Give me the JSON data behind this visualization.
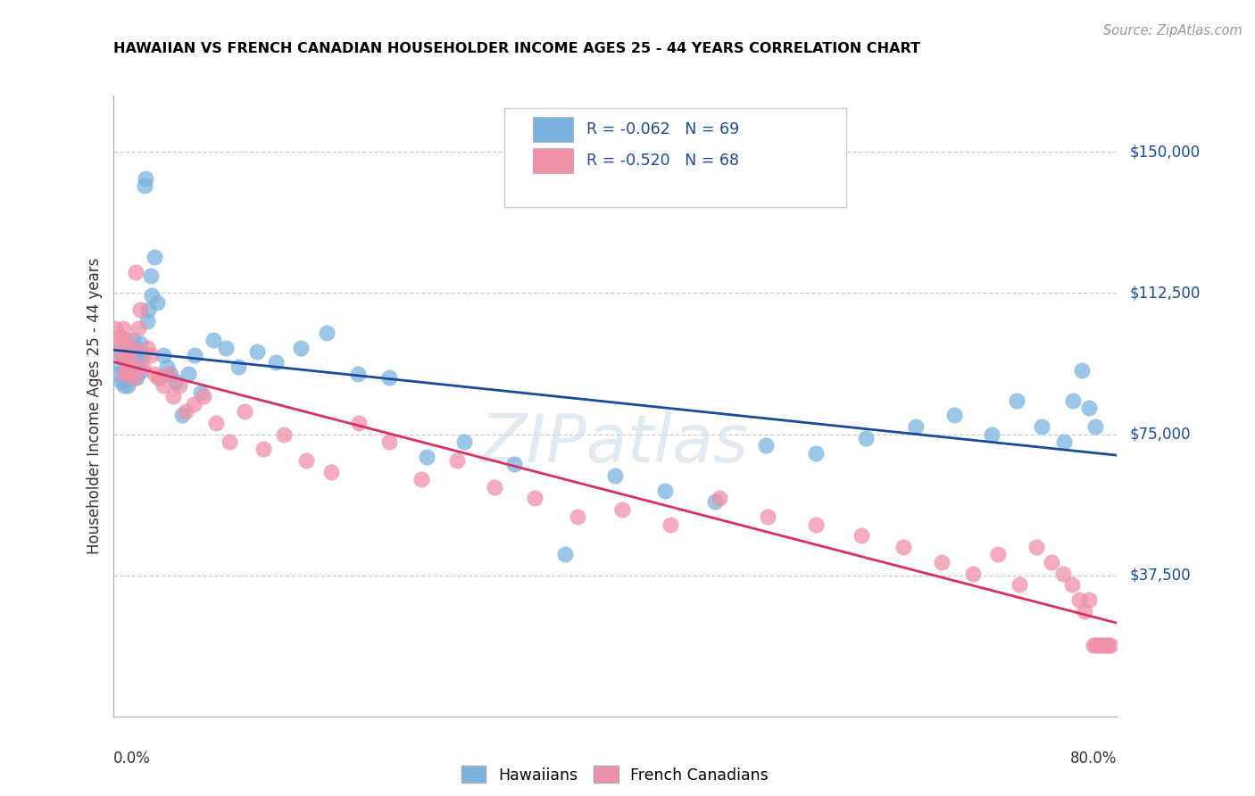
{
  "title": "HAWAIIAN VS FRENCH CANADIAN HOUSEHOLDER INCOME AGES 25 - 44 YEARS CORRELATION CHART",
  "source": "Source: ZipAtlas.com",
  "ylabel": "Householder Income Ages 25 - 44 years",
  "ytick_vals": [
    0,
    37500,
    75000,
    112500,
    150000
  ],
  "ytick_labels": [
    "",
    "$37,500",
    "$75,000",
    "$112,500",
    "$150,000"
  ],
  "xmin": 0.0,
  "xmax": 0.8,
  "ymin": 0,
  "ymax": 165000,
  "hawaiian_R": -0.062,
  "hawaiian_N": 69,
  "french_R": -0.52,
  "french_N": 68,
  "blue_scatter": "#7ab3e0",
  "pink_scatter": "#f090a8",
  "blue_line": "#1a4a9c",
  "pink_line": "#d83060",
  "legend_text_color": "#1a4a9c",
  "grid_color": "#cccccc",
  "bg_color": "#ffffff",
  "hawaiian_x": [
    0.003,
    0.004,
    0.006,
    0.007,
    0.008,
    0.009,
    0.01,
    0.011,
    0.012,
    0.013,
    0.013,
    0.014,
    0.015,
    0.016,
    0.017,
    0.017,
    0.018,
    0.019,
    0.02,
    0.021,
    0.022,
    0.023,
    0.024,
    0.025,
    0.026,
    0.027,
    0.028,
    0.03,
    0.031,
    0.033,
    0.035,
    0.037,
    0.04,
    0.043,
    0.046,
    0.05,
    0.055,
    0.06,
    0.065,
    0.07,
    0.08,
    0.09,
    0.1,
    0.115,
    0.13,
    0.15,
    0.17,
    0.195,
    0.22,
    0.25,
    0.28,
    0.32,
    0.36,
    0.4,
    0.44,
    0.48,
    0.52,
    0.56,
    0.6,
    0.64,
    0.67,
    0.7,
    0.72,
    0.74,
    0.758,
    0.765,
    0.772,
    0.778,
    0.783
  ],
  "hawaiian_y": [
    97000,
    91000,
    93000,
    89000,
    95000,
    88000,
    92000,
    96000,
    88000,
    94000,
    90000,
    97000,
    93000,
    100000,
    91000,
    95000,
    98000,
    90000,
    94000,
    97000,
    99000,
    92000,
    96000,
    141000,
    143000,
    105000,
    108000,
    117000,
    112000,
    122000,
    110000,
    90000,
    96000,
    93000,
    91000,
    89000,
    80000,
    91000,
    96000,
    86000,
    100000,
    98000,
    93000,
    97000,
    94000,
    98000,
    102000,
    91000,
    90000,
    69000,
    73000,
    67000,
    43000,
    64000,
    60000,
    57000,
    72000,
    70000,
    74000,
    77000,
    80000,
    75000,
    84000,
    77000,
    73000,
    84000,
    92000,
    82000,
    77000
  ],
  "french_x": [
    0.002,
    0.004,
    0.005,
    0.007,
    0.008,
    0.009,
    0.01,
    0.011,
    0.012,
    0.013,
    0.014,
    0.015,
    0.017,
    0.018,
    0.02,
    0.022,
    0.024,
    0.027,
    0.03,
    0.033,
    0.036,
    0.04,
    0.044,
    0.048,
    0.053,
    0.058,
    0.064,
    0.072,
    0.082,
    0.093,
    0.105,
    0.12,
    0.136,
    0.154,
    0.174,
    0.196,
    0.22,
    0.246,
    0.274,
    0.304,
    0.336,
    0.37,
    0.406,
    0.444,
    0.483,
    0.522,
    0.56,
    0.596,
    0.63,
    0.66,
    0.685,
    0.705,
    0.722,
    0.736,
    0.748,
    0.757,
    0.764,
    0.77,
    0.774,
    0.778,
    0.781,
    0.783,
    0.785,
    0.787,
    0.789,
    0.791,
    0.793,
    0.795
  ],
  "french_y": [
    103000,
    99000,
    101000,
    96000,
    103000,
    91000,
    96000,
    100000,
    93000,
    91000,
    95000,
    98000,
    90000,
    118000,
    103000,
    108000,
    93000,
    98000,
    96000,
    91000,
    90000,
    88000,
    91000,
    85000,
    88000,
    81000,
    83000,
    85000,
    78000,
    73000,
    81000,
    71000,
    75000,
    68000,
    65000,
    78000,
    73000,
    63000,
    68000,
    61000,
    58000,
    53000,
    55000,
    51000,
    58000,
    53000,
    51000,
    48000,
    45000,
    41000,
    38000,
    43000,
    35000,
    45000,
    41000,
    38000,
    35000,
    31000,
    28000,
    31000,
    19000,
    19000,
    19000,
    19000,
    19000,
    19000,
    19000,
    19000
  ]
}
